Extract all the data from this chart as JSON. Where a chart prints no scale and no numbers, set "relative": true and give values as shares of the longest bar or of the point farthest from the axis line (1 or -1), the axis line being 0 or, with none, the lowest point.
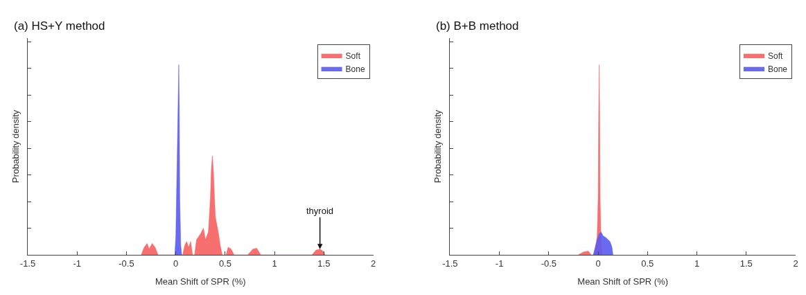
{
  "chart_data": [
    {
      "type": "area",
      "title": "(a) HS+Y method",
      "xlabel": "Mean Shift of SPR (%)",
      "ylabel": "Probability density",
      "relative": true,
      "xlim": [
        -1.5,
        2
      ],
      "xticks": [
        -1.5,
        -1,
        -0.5,
        0,
        0.5,
        1,
        1.5,
        2
      ],
      "legend": "top right",
      "annotations": [
        {
          "text": "thyroid",
          "x": 1.46,
          "y": 0.03
        }
      ],
      "series": [
        {
          "name": "Soft",
          "color": "#f65f5f",
          "x": [
            -0.35,
            -0.32,
            -0.29,
            -0.27,
            -0.24,
            -0.21,
            -0.18,
            0.07,
            0.09,
            0.11,
            0.13,
            0.15,
            0.17,
            0.19,
            0.21,
            0.25,
            0.28,
            0.3,
            0.33,
            0.35,
            0.36,
            0.37,
            0.38,
            0.4,
            0.43,
            0.45,
            0.47,
            0.51,
            0.53,
            0.56,
            0.59,
            0.73,
            0.78,
            0.82,
            0.86,
            1.38,
            1.42,
            1.46,
            1.49,
            1.51
          ],
          "values": [
            0,
            0.04,
            0.06,
            0.03,
            0.06,
            0.04,
            0,
            0,
            0.05,
            0.07,
            0.04,
            0.07,
            0,
            0,
            0.08,
            0.11,
            0.14,
            0.08,
            0.12,
            0.3,
            0.45,
            0.52,
            0.45,
            0.2,
            0.12,
            0.05,
            0,
            0,
            0.04,
            0.03,
            0,
            0,
            0.03,
            0.035,
            0,
            0,
            0.025,
            0.03,
            0.02,
            0
          ]
        },
        {
          "name": "Bone",
          "color": "#5a5af0",
          "x": [
            -0.01,
            0.0,
            0.01,
            0.02,
            0.03,
            0.035,
            0.04,
            0.05,
            0.06
          ],
          "values": [
            0,
            0.1,
            0.4,
            0.7,
            1.0,
            0.8,
            0.3,
            0.05,
            0
          ]
        }
      ]
    },
    {
      "type": "area",
      "title": "(b) B+B method",
      "xlabel": "Mean Shift of SPR (%)",
      "ylabel": "Probability density",
      "relative": true,
      "xlim": [
        -1.5,
        2
      ],
      "xticks": [
        -1.5,
        -1,
        -0.5,
        0,
        0.5,
        1,
        1.5,
        2
      ],
      "legend": "top right",
      "series": [
        {
          "name": "Soft",
          "color": "#f65f5f",
          "x": [
            -0.2,
            -0.15,
            -0.1,
            -0.07,
            -0.04,
            -0.02,
            -0.01,
            0.0,
            0.005,
            0.01,
            0.015,
            0.02,
            0.03,
            0.04
          ],
          "values": [
            0,
            0.015,
            0.02,
            0,
            0,
            0.06,
            0.1,
            0.3,
            0.7,
            1.0,
            0.75,
            0.3,
            0.05,
            0
          ]
        },
        {
          "name": "Bone",
          "color": "#5a5af0",
          "x": [
            -0.05,
            -0.03,
            -0.01,
            0.01,
            0.03,
            0.05,
            0.08,
            0.1,
            0.12,
            0.14,
            0.15
          ],
          "values": [
            0,
            0.04,
            0.08,
            0.11,
            0.12,
            0.1,
            0.09,
            0.08,
            0.07,
            0.04,
            0
          ]
        }
      ]
    }
  ]
}
